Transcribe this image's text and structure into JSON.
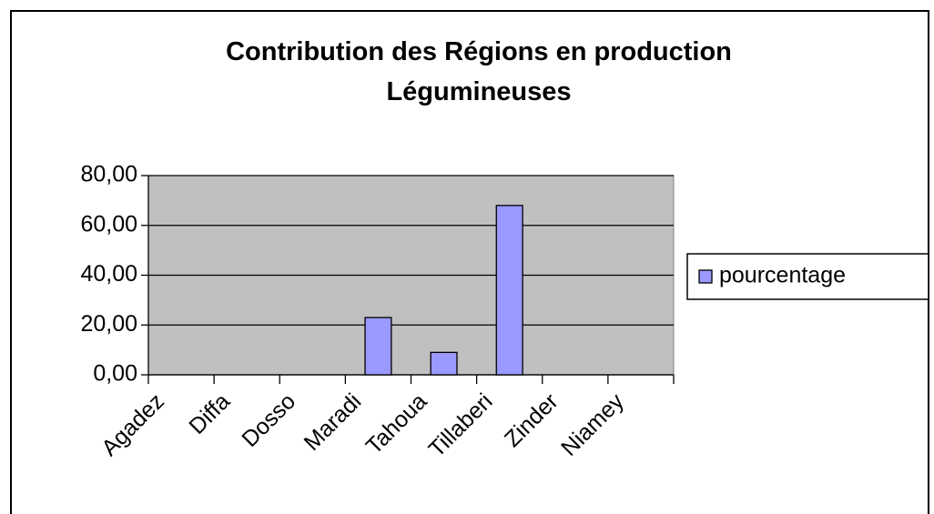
{
  "chart_data": {
    "type": "bar",
    "title": "Contribution des Régions en production Légumineuses",
    "categories": [
      "Agadez",
      "Diffa",
      "Dosso",
      "Maradi",
      "Tahoua",
      "Tillaberi",
      "Zinder",
      "Niamey"
    ],
    "series": [
      {
        "name": "pourcentage",
        "color": "#9999ff",
        "values": [
          0,
          0,
          0,
          23,
          9,
          68,
          0,
          0
        ]
      }
    ],
    "ylim": [
      0,
      80
    ],
    "yticks": [
      {
        "value": 0,
        "label": "0,00"
      },
      {
        "value": 20,
        "label": "20,00"
      },
      {
        "value": 40,
        "label": "40,00"
      },
      {
        "value": 60,
        "label": "60,00"
      },
      {
        "value": 80,
        "label": "80,00"
      }
    ],
    "grid": true,
    "legend": "right"
  }
}
